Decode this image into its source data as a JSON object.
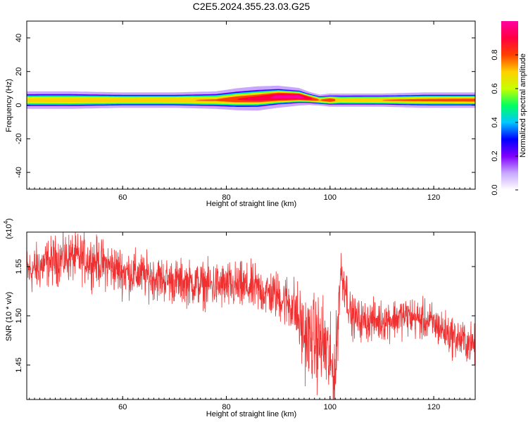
{
  "title": "C2E5.2024.355.23.03.G25",
  "chart_data": [
    {
      "type": "heatmap",
      "xlabel": "Height of straight line (km)",
      "ylabel": "Frequency (Hz)",
      "xlim": [
        41.5,
        128
      ],
      "ylim": [
        -50,
        50
      ],
      "xticks": [
        60,
        80,
        100,
        120
      ],
      "yticks": [
        40,
        20,
        0,
        -20,
        -40
      ],
      "colorbar": {
        "label": "Normalized spectral amplitude",
        "range": [
          0,
          1
        ],
        "ticks": [
          "0.0",
          "0.2",
          "0.4",
          "0.6",
          "0.8"
        ],
        "colors": [
          "#ffffff",
          "#c8a8ff",
          "#8000ff",
          "#0000ff",
          "#00c8ff",
          "#00ff60",
          "#c8ff00",
          "#ffd000",
          "#ff4000",
          "#ff0040",
          "#ff00a0"
        ]
      },
      "band": {
        "description_of_values": "frequency band centre vs height",
        "x": [
          42,
          50,
          60,
          70,
          78,
          82,
          86,
          90,
          94,
          96,
          98,
          100,
          102,
          104,
          110,
          118,
          128
        ],
        "center_hz": [
          3,
          3,
          3,
          3,
          3,
          3.5,
          4,
          5,
          5,
          4,
          3,
          3,
          3,
          3,
          3,
          3,
          3
        ],
        "halfwidth_hz": [
          4,
          4,
          3.5,
          3.5,
          4,
          5,
          5.5,
          5,
          4,
          3,
          2.5,
          3,
          3,
          3,
          3,
          3.5,
          3.5
        ],
        "peak_amplitude": [
          0.7,
          0.72,
          0.73,
          0.74,
          0.76,
          0.85,
          0.9,
          0.98,
          1.0,
          0.9,
          0.75,
          0.85,
          0.7,
          0.72,
          0.75,
          0.78,
          0.8
        ]
      }
    },
    {
      "type": "line",
      "xlabel": "Height of straight line (km)",
      "ylabel": "SNR (10 * v/v)",
      "scale_label": "(x10",
      "scale_exp": "4",
      "scale_close": ")",
      "xlim": [
        41.5,
        128
      ],
      "ylim": [
        1.415,
        1.585
      ],
      "xticks": [
        60,
        80,
        100,
        120
      ],
      "yticks": [
        "1.55",
        "1.50",
        "1.45"
      ],
      "ytick_values": [
        1.55,
        1.5,
        1.45
      ],
      "line_color": "#f03030",
      "series": [
        {
          "x": [
            42,
            46,
            50,
            55,
            60,
            65,
            70,
            75,
            80,
            85,
            90,
            93,
            95,
            97,
            99,
            100,
            101,
            102,
            103,
            104,
            106,
            110,
            115,
            120,
            124,
            128
          ],
          "values": [
            1.545,
            1.555,
            1.56,
            1.555,
            1.545,
            1.54,
            1.535,
            1.532,
            1.53,
            1.528,
            1.52,
            1.51,
            1.48,
            1.475,
            1.47,
            1.45,
            1.44,
            1.545,
            1.53,
            1.5,
            1.495,
            1.495,
            1.5,
            1.492,
            1.478,
            1.47
          ],
          "noise": [
            0.012,
            0.012,
            0.012,
            0.012,
            0.012,
            0.011,
            0.011,
            0.011,
            0.012,
            0.012,
            0.012,
            0.015,
            0.02,
            0.022,
            0.025,
            0.022,
            0.02,
            0.015,
            0.012,
            0.01,
            0.01,
            0.01,
            0.01,
            0.01,
            0.01,
            0.01
          ]
        }
      ]
    }
  ]
}
